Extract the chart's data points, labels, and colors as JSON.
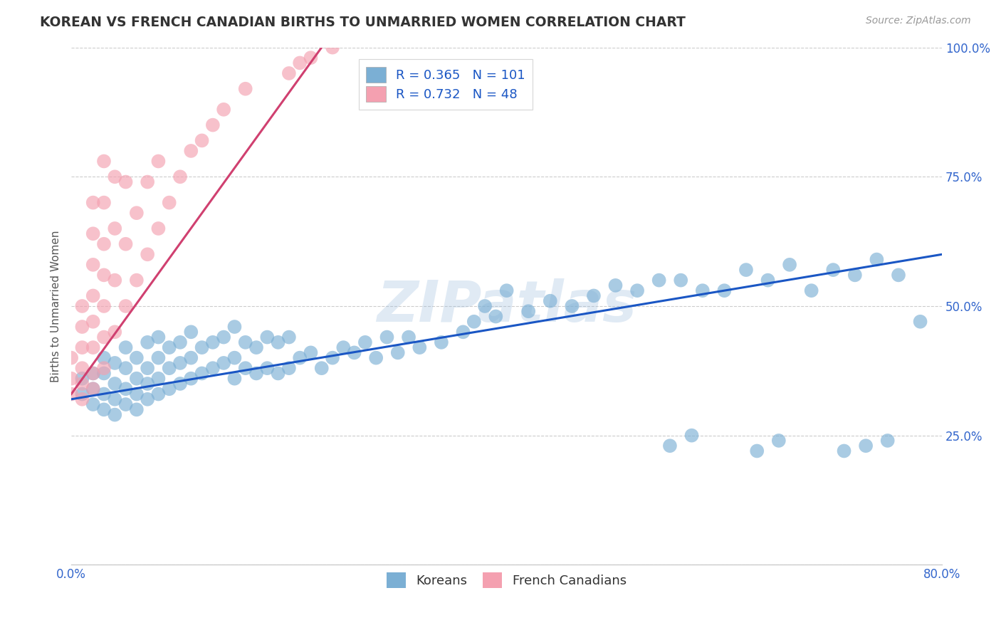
{
  "title": "KOREAN VS FRENCH CANADIAN BIRTHS TO UNMARRIED WOMEN CORRELATION CHART",
  "source": "Source: ZipAtlas.com",
  "ylabel": "Births to Unmarried Women",
  "xlim": [
    0.0,
    0.8
  ],
  "ylim": [
    0.0,
    1.0
  ],
  "yticks": [
    0.0,
    0.25,
    0.5,
    0.75,
    1.0
  ],
  "yticklabels": [
    "",
    "25.0%",
    "50.0%",
    "75.0%",
    "100.0%"
  ],
  "legend_sublabels": [
    "Koreans",
    "French Canadians"
  ],
  "R_korean": 0.365,
  "N_korean": 101,
  "R_french": 0.732,
  "N_french": 48,
  "blue_color": "#7BAFD4",
  "pink_color": "#F4A0B0",
  "blue_line_color": "#1A56C4",
  "pink_line_color": "#D04070",
  "watermark": "ZIPatlas",
  "background_color": "#FFFFFF",
  "grid_color": "#CCCCCC",
  "title_color": "#333333",
  "axis_label_color": "#555555",
  "tick_color": "#3366CC",
  "blue_line_x0": 0.0,
  "blue_line_y0": 0.32,
  "blue_line_x1": 0.8,
  "blue_line_y1": 0.6,
  "pink_line_x0": 0.0,
  "pink_line_y0": 0.33,
  "pink_line_x1": 0.23,
  "pink_line_y1": 1.0,
  "korean_x": [
    0.01,
    0.01,
    0.02,
    0.02,
    0.02,
    0.03,
    0.03,
    0.03,
    0.03,
    0.04,
    0.04,
    0.04,
    0.04,
    0.05,
    0.05,
    0.05,
    0.05,
    0.06,
    0.06,
    0.06,
    0.06,
    0.07,
    0.07,
    0.07,
    0.07,
    0.08,
    0.08,
    0.08,
    0.08,
    0.09,
    0.09,
    0.09,
    0.1,
    0.1,
    0.1,
    0.11,
    0.11,
    0.11,
    0.12,
    0.12,
    0.13,
    0.13,
    0.14,
    0.14,
    0.15,
    0.15,
    0.15,
    0.16,
    0.16,
    0.17,
    0.17,
    0.18,
    0.18,
    0.19,
    0.19,
    0.2,
    0.2,
    0.21,
    0.22,
    0.23,
    0.24,
    0.25,
    0.26,
    0.27,
    0.28,
    0.29,
    0.3,
    0.31,
    0.32,
    0.34,
    0.36,
    0.37,
    0.38,
    0.39,
    0.4,
    0.42,
    0.44,
    0.46,
    0.48,
    0.5,
    0.52,
    0.54,
    0.56,
    0.58,
    0.6,
    0.62,
    0.64,
    0.66,
    0.68,
    0.7,
    0.72,
    0.74,
    0.76,
    0.55,
    0.57,
    0.63,
    0.65,
    0.71,
    0.73,
    0.75,
    0.78
  ],
  "korean_y": [
    0.33,
    0.36,
    0.31,
    0.34,
    0.37,
    0.3,
    0.33,
    0.37,
    0.4,
    0.29,
    0.32,
    0.35,
    0.39,
    0.31,
    0.34,
    0.38,
    0.42,
    0.3,
    0.33,
    0.36,
    0.4,
    0.32,
    0.35,
    0.38,
    0.43,
    0.33,
    0.36,
    0.4,
    0.44,
    0.34,
    0.38,
    0.42,
    0.35,
    0.39,
    0.43,
    0.36,
    0.4,
    0.45,
    0.37,
    0.42,
    0.38,
    0.43,
    0.39,
    0.44,
    0.36,
    0.4,
    0.46,
    0.38,
    0.43,
    0.37,
    0.42,
    0.38,
    0.44,
    0.37,
    0.43,
    0.38,
    0.44,
    0.4,
    0.41,
    0.38,
    0.4,
    0.42,
    0.41,
    0.43,
    0.4,
    0.44,
    0.41,
    0.44,
    0.42,
    0.43,
    0.45,
    0.47,
    0.5,
    0.48,
    0.53,
    0.49,
    0.51,
    0.5,
    0.52,
    0.54,
    0.53,
    0.55,
    0.55,
    0.53,
    0.53,
    0.57,
    0.55,
    0.58,
    0.53,
    0.57,
    0.56,
    0.59,
    0.56,
    0.23,
    0.25,
    0.22,
    0.24,
    0.22,
    0.23,
    0.24,
    0.47
  ],
  "french_x": [
    0.0,
    0.0,
    0.0,
    0.01,
    0.01,
    0.01,
    0.01,
    0.01,
    0.01,
    0.02,
    0.02,
    0.02,
    0.02,
    0.02,
    0.02,
    0.02,
    0.02,
    0.03,
    0.03,
    0.03,
    0.03,
    0.03,
    0.03,
    0.03,
    0.04,
    0.04,
    0.04,
    0.04,
    0.05,
    0.05,
    0.05,
    0.06,
    0.06,
    0.07,
    0.07,
    0.08,
    0.08,
    0.09,
    0.1,
    0.11,
    0.12,
    0.13,
    0.14,
    0.16,
    0.2,
    0.21,
    0.22,
    0.24
  ],
  "french_y": [
    0.33,
    0.36,
    0.4,
    0.32,
    0.35,
    0.38,
    0.42,
    0.46,
    0.5,
    0.34,
    0.37,
    0.42,
    0.47,
    0.52,
    0.58,
    0.64,
    0.7,
    0.38,
    0.44,
    0.5,
    0.56,
    0.62,
    0.7,
    0.78,
    0.45,
    0.55,
    0.65,
    0.75,
    0.5,
    0.62,
    0.74,
    0.55,
    0.68,
    0.6,
    0.74,
    0.65,
    0.78,
    0.7,
    0.75,
    0.8,
    0.82,
    0.85,
    0.88,
    0.92,
    0.95,
    0.97,
    0.98,
    1.0
  ]
}
